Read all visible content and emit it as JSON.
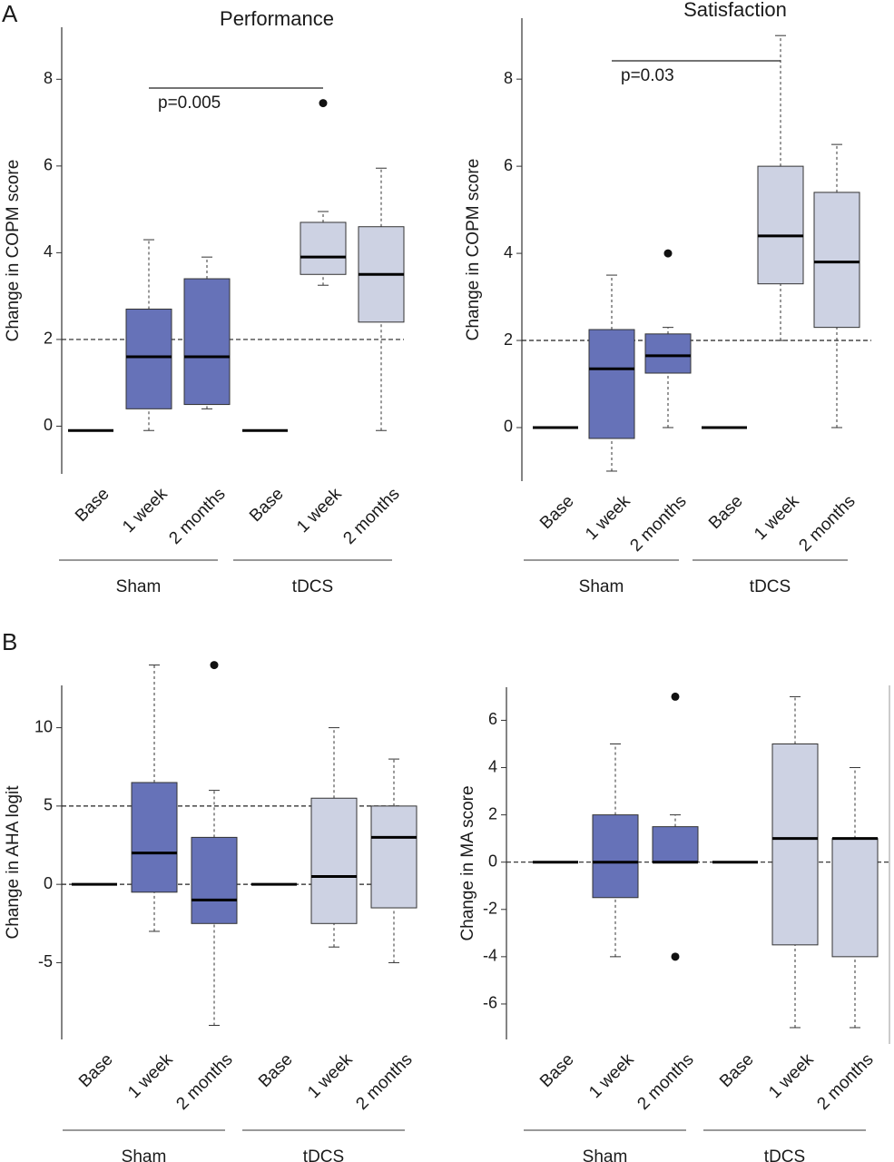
{
  "chart_data": [
    {
      "type": "box",
      "panel_label": "A",
      "title": "Performance",
      "y_label": "Change in COPM score",
      "categories": [
        "Base",
        "1 week",
        "2 months"
      ],
      "series": [
        {
          "name": "Sham",
          "color": "#6672b8",
          "boxes": [
            {
              "min": -0.1,
              "q1": -0.1,
              "median": -0.1,
              "q3": -0.1,
              "max": -0.1,
              "outliers": []
            },
            {
              "min": -0.1,
              "q1": 0.4,
              "median": 1.6,
              "q3": 2.7,
              "max": 4.3,
              "outliers": []
            },
            {
              "min": 0.4,
              "q1": 0.5,
              "median": 1.6,
              "q3": 3.4,
              "max": 3.9,
              "outliers": []
            }
          ]
        },
        {
          "name": "tDCS",
          "color": "#cdd2e3",
          "boxes": [
            {
              "min": -0.1,
              "q1": -0.1,
              "median": -0.1,
              "q3": -0.1,
              "max": -0.1,
              "outliers": []
            },
            {
              "min": 3.25,
              "q1": 3.5,
              "median": 3.9,
              "q3": 4.7,
              "max": 4.95,
              "outliers": [
                7.45
              ]
            },
            {
              "min": -0.1,
              "q1": 2.4,
              "median": 3.5,
              "q3": 4.6,
              "max": 5.95,
              "outliers": []
            }
          ]
        }
      ],
      "ylim": [
        -1.1,
        9.2
      ],
      "yticks": [
        0,
        2,
        4,
        6,
        8
      ],
      "ref_lines": [
        2
      ],
      "annotation": "p=0.005"
    },
    {
      "type": "box",
      "title": "Satisfaction",
      "y_label": "Change in COPM score",
      "categories": [
        "Base",
        "1 week",
        "2 months"
      ],
      "series": [
        {
          "name": "Sham",
          "color": "#6672b8",
          "boxes": [
            {
              "min": 0,
              "q1": 0,
              "median": 0,
              "q3": 0,
              "max": 0,
              "outliers": []
            },
            {
              "min": -1.0,
              "q1": -0.25,
              "median": 1.35,
              "q3": 2.25,
              "max": 3.5,
              "outliers": []
            },
            {
              "min": 0,
              "q1": 1.25,
              "median": 1.65,
              "q3": 2.15,
              "max": 2.3,
              "outliers": [
                4
              ]
            }
          ]
        },
        {
          "name": "tDCS",
          "color": "#cdd2e3",
          "boxes": [
            {
              "min": 0,
              "q1": 0,
              "median": 0,
              "q3": 0,
              "max": 0,
              "outliers": []
            },
            {
              "min": 2,
              "q1": 3.3,
              "median": 4.4,
              "q3": 6.0,
              "max": 9.0,
              "outliers": []
            },
            {
              "min": 0,
              "q1": 2.3,
              "median": 3.8,
              "q3": 5.4,
              "max": 6.5,
              "outliers": []
            }
          ]
        }
      ],
      "ylim": [
        -1.23,
        9.4
      ],
      "yticks": [
        0,
        2,
        4,
        6,
        8
      ],
      "ref_lines": [
        2
      ],
      "annotation": "p=0.03"
    },
    {
      "type": "box",
      "panel_label": "B",
      "y_label": "Change in AHA logit",
      "categories": [
        "Base",
        "1 week",
        "2 months"
      ],
      "series": [
        {
          "name": "Sham",
          "color": "#6672b8",
          "boxes": [
            {
              "min": 0,
              "q1": 0,
              "median": 0,
              "q3": 0,
              "max": 0,
              "outliers": []
            },
            {
              "min": -3,
              "q1": -0.5,
              "median": 2,
              "q3": 6.5,
              "max": 14,
              "outliers": []
            },
            {
              "min": -9,
              "q1": -2.5,
              "median": -1,
              "q3": 3,
              "max": 6,
              "outliers": [
                14
              ]
            }
          ]
        },
        {
          "name": "tDCS",
          "color": "#cdd2e3",
          "boxes": [
            {
              "min": 0,
              "q1": 0,
              "median": 0,
              "q3": 0,
              "max": 0,
              "outliers": []
            },
            {
              "min": -4,
              "q1": -2.5,
              "median": 0.5,
              "q3": 5.5,
              "max": 10,
              "outliers": []
            },
            {
              "min": -5,
              "q1": -1.5,
              "median": 3,
              "q3": 5,
              "max": 8,
              "outliers": []
            }
          ]
        }
      ],
      "ylim": [
        -9.9,
        12.7
      ],
      "yticks": [
        -5,
        0,
        5,
        10
      ],
      "ref_lines": [
        5,
        0
      ]
    },
    {
      "type": "box",
      "y_label": "Change in MA score",
      "categories": [
        "Base",
        "1 week",
        "2 months"
      ],
      "series": [
        {
          "name": "Sham",
          "color": "#6672b8",
          "boxes": [
            {
              "min": 0,
              "q1": 0,
              "median": 0,
              "q3": 0,
              "max": 0,
              "outliers": []
            },
            {
              "min": -4,
              "q1": -1.5,
              "median": 0,
              "q3": 2,
              "max": 5,
              "outliers": []
            },
            {
              "min": 0,
              "q1": 0,
              "median": 0,
              "q3": 1.5,
              "max": 2,
              "outliers": [
                7,
                -4
              ]
            }
          ]
        },
        {
          "name": "tDCS",
          "color": "#cdd2e3",
          "boxes": [
            {
              "min": 0,
              "q1": 0,
              "median": 0,
              "q3": 0,
              "max": 0,
              "outliers": []
            },
            {
              "min": -7,
              "q1": -3.5,
              "median": 1,
              "q3": 5,
              "max": 7,
              "outliers": []
            },
            {
              "min": -7,
              "q1": -4,
              "median": 1,
              "q3": 1,
              "max": 4,
              "outliers": []
            }
          ]
        }
      ],
      "ylim": [
        -7.5,
        7.4
      ],
      "yticks": [
        -6,
        -4,
        -2,
        0,
        2,
        4,
        6
      ],
      "ref_lines": [
        0
      ]
    }
  ]
}
